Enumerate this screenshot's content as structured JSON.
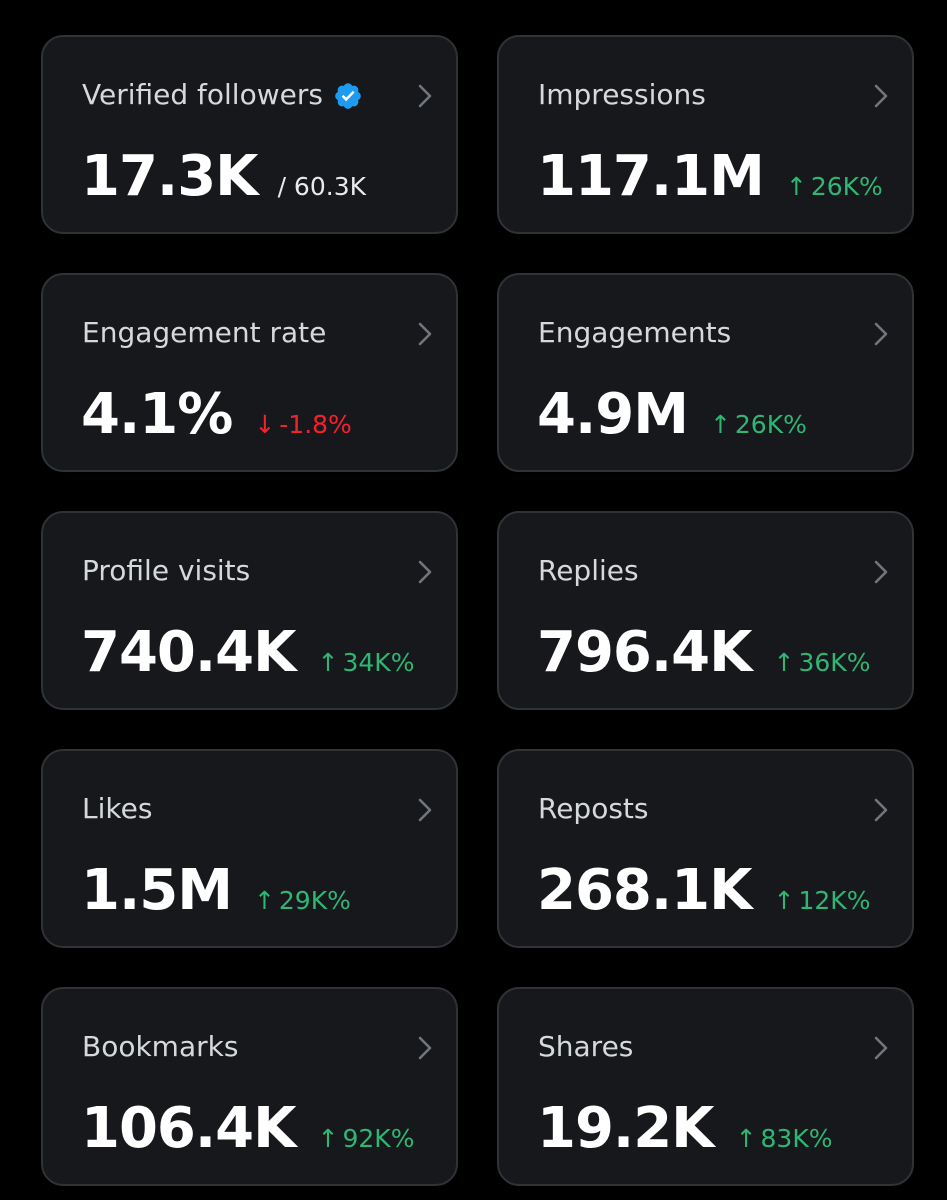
{
  "colors": {
    "background": "#000000",
    "card": "#16181c",
    "card_border": "#2f3336",
    "up": "#2fb673",
    "down": "#f4212e",
    "verified": "#1d9bf0"
  },
  "cards": [
    {
      "title": "Verified followers",
      "value": "17.3K",
      "sub": "/ 60.3K",
      "verified_icon": "verified-badge-icon"
    },
    {
      "title": "Impressions",
      "value": "117.1M",
      "delta": {
        "arrow": "↑",
        "text": "26K%",
        "direction": "up"
      }
    },
    {
      "title": "Engagement rate",
      "value": "4.1%",
      "delta": {
        "arrow": "↓",
        "text": "-1.8%",
        "direction": "down"
      }
    },
    {
      "title": "Engagements",
      "value": "4.9M",
      "delta": {
        "arrow": "↑",
        "text": "26K%",
        "direction": "up"
      }
    },
    {
      "title": "Profile visits",
      "value": "740.4K",
      "delta": {
        "arrow": "↑",
        "text": "34K%",
        "direction": "up"
      }
    },
    {
      "title": "Replies",
      "value": "796.4K",
      "delta": {
        "arrow": "↑",
        "text": "36K%",
        "direction": "up"
      }
    },
    {
      "title": "Likes",
      "value": "1.5M",
      "delta": {
        "arrow": "↑",
        "text": "29K%",
        "direction": "up"
      }
    },
    {
      "title": "Reposts",
      "value": "268.1K",
      "delta": {
        "arrow": "↑",
        "text": "12K%",
        "direction": "up"
      }
    },
    {
      "title": "Bookmarks",
      "value": "106.4K",
      "delta": {
        "arrow": "↑",
        "text": "92K%",
        "direction": "up"
      }
    },
    {
      "title": "Shares",
      "value": "19.2K",
      "delta": {
        "arrow": "↑",
        "text": "83K%",
        "direction": "up"
      }
    }
  ]
}
